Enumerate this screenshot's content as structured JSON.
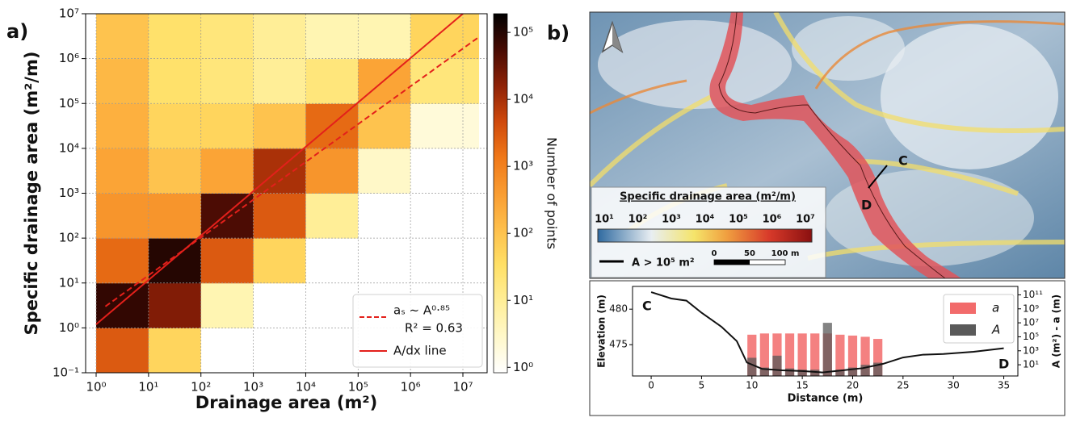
{
  "panel_labels": [
    "a)",
    "b)"
  ],
  "chart_data": [
    {
      "type": "hist2d",
      "xlabel": "Drainage area (m²)",
      "ylabel": "Specific drainage area (m²/m)",
      "xscale": "log",
      "yscale": "log",
      "grid": true,
      "xlim": [
        0.63,
        29000000
      ],
      "ylim": [
        0.1,
        10000000
      ],
      "xticks": [
        {
          "value": 1,
          "label": "10⁰"
        },
        {
          "value": 10,
          "label": "10¹"
        },
        {
          "value": 100,
          "label": "10²"
        },
        {
          "value": 1000,
          "label": "10³"
        },
        {
          "value": 10000,
          "label": "10⁴"
        },
        {
          "value": 100000,
          "label": "10⁵"
        },
        {
          "value": 1000000,
          "label": "10⁶"
        },
        {
          "value": 10000000,
          "label": "10⁷"
        }
      ],
      "yticks": [
        {
          "value": 0.1,
          "label": "10⁻¹"
        },
        {
          "value": 1,
          "label": "10⁰"
        },
        {
          "value": 10,
          "label": "10¹"
        },
        {
          "value": 100,
          "label": "10²"
        },
        {
          "value": 1000,
          "label": "10³"
        },
        {
          "value": 10000,
          "label": "10⁴"
        },
        {
          "value": 100000,
          "label": "10⁵"
        },
        {
          "value": 1000000,
          "label": "10⁶"
        },
        {
          "value": 10000000,
          "label": "10⁷"
        }
      ],
      "x_bins": [
        1,
        10,
        100,
        1000,
        10000,
        100000,
        1000000,
        20000000
      ],
      "y_bins": [
        0.1,
        1,
        10,
        100,
        1000,
        10000,
        100000,
        1000000,
        10000000
      ],
      "counts": [
        [
          3000,
          80000,
          2000,
          500,
          300,
          200,
          150,
          100
        ],
        [
          50,
          20000,
          100000,
          500,
          100,
          50,
          30,
          30
        ],
        [
          0,
          5,
          3000,
          50000,
          300,
          50,
          20,
          20
        ],
        [
          0,
          0,
          50,
          3000,
          10000,
          100,
          10,
          10
        ],
        [
          0,
          0,
          0,
          10,
          500,
          2000,
          20,
          5
        ],
        [
          0,
          0,
          0,
          0,
          3,
          100,
          300,
          5
        ],
        [
          0,
          0,
          0,
          0,
          0,
          2,
          20,
          50
        ]
      ],
      "clabel": "Number of points",
      "clim": [
        0.83,
        190000
      ],
      "cticks": [
        {
          "value": 1,
          "label": "10⁰"
        },
        {
          "value": 10,
          "label": "10¹"
        },
        {
          "value": 100,
          "label": "10²"
        },
        {
          "value": 1000,
          "label": "10³"
        },
        {
          "value": 10000,
          "label": "10⁴"
        },
        {
          "value": 100000,
          "label": "10⁵"
        }
      ],
      "series": [
        {
          "name": "aₛ ~ A⁰·⁸⁵",
          "style": "dashed",
          "color": "#e3201b",
          "x": [
            1.5,
            20000000
          ],
          "y": [
            3,
            3000000
          ]
        },
        {
          "name": "A/dx line",
          "style": "solid",
          "color": "#e3201b",
          "x": [
            1,
            10000000
          ],
          "y": [
            1.2,
            10000000
          ]
        }
      ],
      "legend_note": "R² = 0.63",
      "legend": "lower right"
    },
    {
      "type": "profile",
      "xlabel": "Distance (m)",
      "ylabel": "Elevation (m)",
      "y2label": "A (m²) - a (m)",
      "xlim": [
        -1.85,
        36.4
      ],
      "ylim": [
        470.6,
        483.2
      ],
      "y2lim": [
        0.25,
        1600000000000
      ],
      "y2scale": "log",
      "xticks": [
        0,
        5,
        10,
        15,
        20,
        25,
        30,
        35
      ],
      "yticks": [
        475,
        480
      ],
      "y2ticks": [
        {
          "value": 10,
          "label": "10¹"
        },
        {
          "value": 1000,
          "label": "10³"
        },
        {
          "value": 100000,
          "label": "10⁵"
        },
        {
          "value": 10000000,
          "label": "10⁷"
        },
        {
          "value": 1000000000,
          "label": "10⁹"
        },
        {
          "value": 100000000000,
          "label": "10¹¹"
        }
      ],
      "line": {
        "color": "#111111",
        "x": [
          0,
          2,
          3.5,
          5,
          7,
          8.5,
          9.5,
          11,
          13,
          15,
          17,
          19,
          21,
          23,
          25,
          27,
          29,
          32,
          35
        ],
        "y": [
          482.4,
          481.5,
          481.2,
          479.5,
          477.5,
          475.5,
          472.5,
          471.6,
          471.4,
          471.3,
          471.1,
          471.4,
          471.7,
          472.3,
          473.2,
          473.6,
          473.7,
          474.0,
          474.5
        ]
      },
      "bar_x": [
        10,
        11.25,
        12.5,
        13.75,
        15,
        16.25,
        17.5,
        18.75,
        20,
        21.25,
        22.5
      ],
      "series": [
        {
          "name": "a",
          "color": "#f26b6b",
          "axis": "y2",
          "values": [
            200000,
            300000,
            300000,
            300000,
            300000,
            300000,
            300000,
            200000,
            150000,
            100000,
            50000
          ]
        },
        {
          "name": "A",
          "color": "#5a5a5a",
          "axis": "y2",
          "values": [
            100,
            4,
            200,
            3,
            2,
            2,
            10000000,
            2,
            4,
            10,
            20
          ]
        }
      ],
      "annotations": [
        "C",
        "D"
      ]
    }
  ],
  "map": {
    "legend_title": "Specific drainage area (m²/m)",
    "colorbar_ticks": [
      {
        "value": 10,
        "label": "10¹"
      },
      {
        "value": 100,
        "label": "10²"
      },
      {
        "value": 1000,
        "label": "10³"
      },
      {
        "value": 10000,
        "label": "10⁴"
      },
      {
        "value": 100000,
        "label": "10⁵"
      },
      {
        "value": 1000000,
        "label": "10⁶"
      },
      {
        "value": 10000000,
        "label": "10⁷"
      }
    ],
    "line_label": "A > 10⁵ m²",
    "scale_ticks": [
      0,
      50,
      {
        "value": 100,
        "label": "100 m"
      }
    ],
    "section_labels": [
      "C",
      "D"
    ]
  }
}
